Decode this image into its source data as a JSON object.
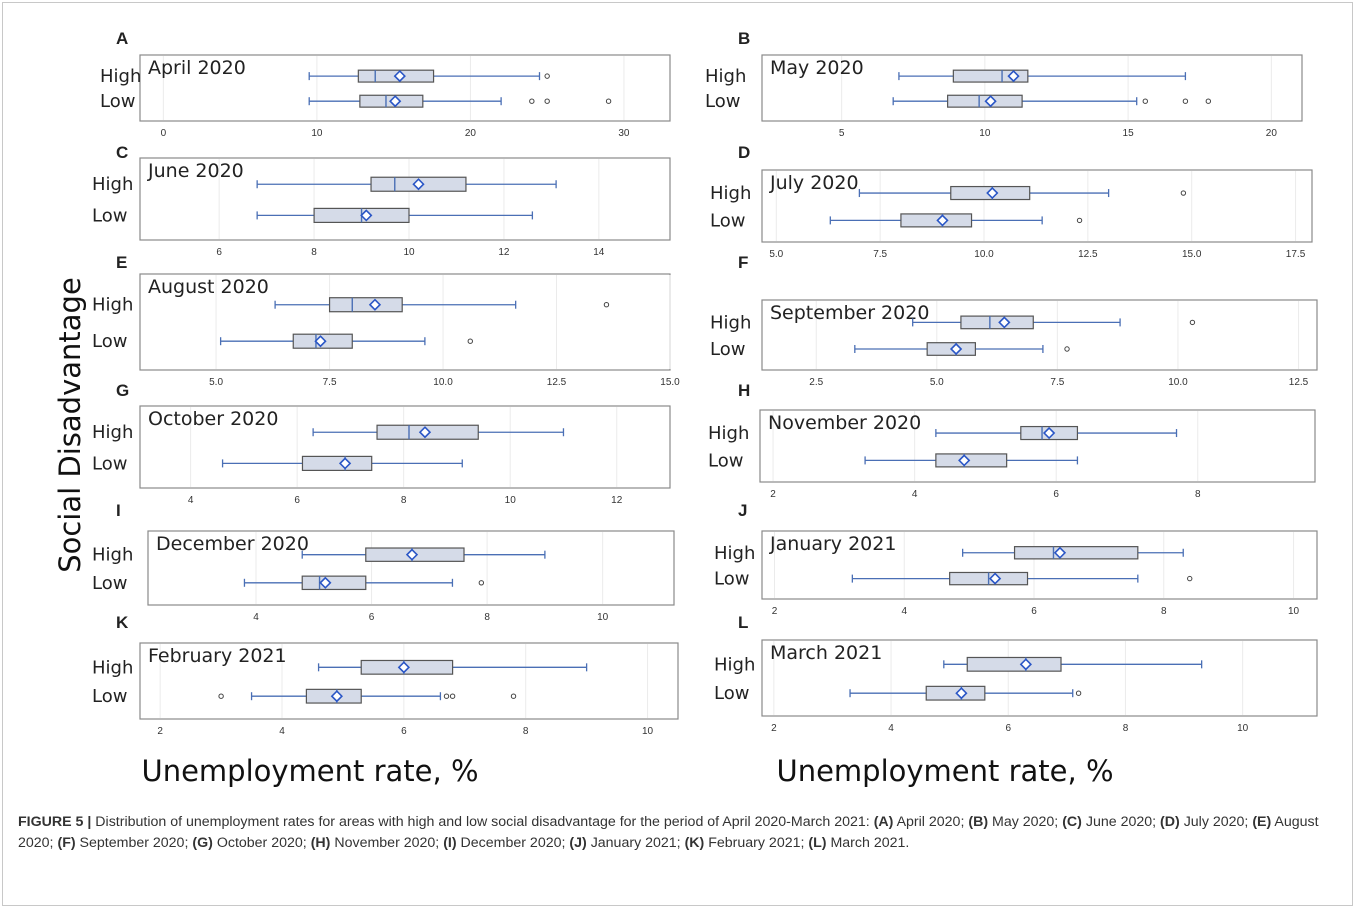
{
  "figure": {
    "y_axis_title": "Social Disadvantage",
    "x_axis_title_left": "Unemployment rate, %",
    "x_axis_title_right": "Unemployment rate, %",
    "categories": [
      "High",
      "Low"
    ]
  },
  "caption": {
    "label": "FIGURE 5 |",
    "text_lead": "Distribution of unemployment rates for areas with high and low social disadvantage for the period of April 2020-March 2021:",
    "items": [
      {
        "letter": "(A)",
        "text": "April 2020;"
      },
      {
        "letter": "(B)",
        "text": "May 2020;"
      },
      {
        "letter": "(C)",
        "text": "June 2020;"
      },
      {
        "letter": "(D)",
        "text": "July 2020;"
      },
      {
        "letter": "(E)",
        "text": "August 2020;"
      },
      {
        "letter": "(F)",
        "text": "September 2020;"
      },
      {
        "letter": "(G)",
        "text": "October 2020;"
      },
      {
        "letter": "(H)",
        "text": "November 2020;"
      },
      {
        "letter": "(I)",
        "text": "December 2020;"
      },
      {
        "letter": "(J)",
        "text": "January 2021;"
      },
      {
        "letter": "(K)",
        "text": "February 2021;"
      },
      {
        "letter": "(L)",
        "text": "March 2021."
      }
    ]
  },
  "colors": {
    "box_fill": "#d5dbe8",
    "box_stroke": "#555555",
    "whisker": "#4a6fb5",
    "mean_marker": "#2a56c6",
    "frame": "#8a8a8a"
  },
  "chart_data": [
    {
      "type": "boxplot",
      "panel": "A",
      "title": "April 2020",
      "xlim": [
        -1,
        33
      ],
      "xticks": [
        0,
        10,
        20,
        30
      ],
      "xtick_labels": [
        "0",
        "10",
        "20",
        "30"
      ],
      "series": [
        {
          "name": "High",
          "whisker_low": 9.5,
          "q1": 12.7,
          "median": 13.8,
          "q3": 17.6,
          "whisker_high": 24.5,
          "mean": 15.4,
          "outliers": [
            25.0
          ]
        },
        {
          "name": "Low",
          "whisker_low": 9.5,
          "q1": 12.8,
          "median": 14.5,
          "q3": 16.9,
          "whisker_high": 22.0,
          "mean": 15.1,
          "outliers": [
            24.0,
            25.0,
            29.0
          ]
        }
      ]
    },
    {
      "type": "boxplot",
      "panel": "B",
      "title": "May 2020",
      "xlim": [
        2.5,
        21
      ],
      "xticks": [
        5,
        10,
        15,
        20
      ],
      "xtick_labels": [
        "5",
        "10",
        "15",
        "20"
      ],
      "series": [
        {
          "name": "High",
          "whisker_low": 7.0,
          "q1": 8.9,
          "median": 10.6,
          "q3": 11.5,
          "whisker_high": 17.0,
          "mean": 11.0,
          "outliers": []
        },
        {
          "name": "Low",
          "whisker_low": 6.8,
          "q1": 8.7,
          "median": 9.8,
          "q3": 11.3,
          "whisker_high": 15.3,
          "mean": 10.2,
          "outliers": [
            15.6,
            17.0,
            17.8
          ]
        }
      ]
    },
    {
      "type": "boxplot",
      "panel": "C",
      "title": "June 2020",
      "xlim": [
        4.5,
        15.5
      ],
      "xticks": [
        6,
        8,
        10,
        12,
        14
      ],
      "xtick_labels": [
        "6",
        "8",
        "10",
        "12",
        "14"
      ],
      "series": [
        {
          "name": "High",
          "whisker_low": 6.8,
          "q1": 9.2,
          "median": 9.7,
          "q3": 11.2,
          "whisker_high": 13.1,
          "mean": 10.2,
          "outliers": []
        },
        {
          "name": "Low",
          "whisker_low": 6.8,
          "q1": 8.0,
          "median": 9.0,
          "q3": 10.0,
          "whisker_high": 12.6,
          "mean": 9.1,
          "outliers": []
        }
      ]
    },
    {
      "type": "boxplot",
      "panel": "D",
      "title": "July 2020",
      "xlim": [
        4.8,
        17.8
      ],
      "xticks": [
        5,
        7.5,
        10,
        12.5,
        15,
        17.5
      ],
      "xtick_labels": [
        "5.0",
        "7.5",
        "10.0",
        "12.5",
        "15.0",
        "17.5"
      ],
      "series": [
        {
          "name": "High",
          "whisker_low": 7.0,
          "q1": 9.2,
          "median": 10.2,
          "q3": 11.1,
          "whisker_high": 13.0,
          "mean": 10.2,
          "outliers": [
            14.8
          ]
        },
        {
          "name": "Low",
          "whisker_low": 6.3,
          "q1": 8.0,
          "median": 9.0,
          "q3": 9.7,
          "whisker_high": 11.4,
          "mean": 9.0,
          "outliers": [
            12.3
          ]
        }
      ]
    },
    {
      "type": "boxplot",
      "panel": "E",
      "title": "August 2020",
      "xlim": [
        3.5,
        15
      ],
      "xticks": [
        5,
        7.5,
        10,
        12.5,
        15
      ],
      "xtick_labels": [
        "5.0",
        "7.5",
        "10.0",
        "12.5",
        "15.0"
      ],
      "series": [
        {
          "name": "High",
          "whisker_low": 6.3,
          "q1": 7.5,
          "median": 8.0,
          "q3": 9.1,
          "whisker_high": 11.6,
          "mean": 8.5,
          "outliers": [
            13.6
          ]
        },
        {
          "name": "Low",
          "whisker_low": 5.1,
          "q1": 6.7,
          "median": 7.2,
          "q3": 8.0,
          "whisker_high": 9.6,
          "mean": 7.3,
          "outliers": [
            10.6
          ]
        }
      ]
    },
    {
      "type": "boxplot",
      "panel": "F",
      "title": "September 2020",
      "xlim": [
        1.5,
        12.8
      ],
      "xticks": [
        2.5,
        5,
        7.5,
        10,
        12.5
      ],
      "xtick_labels": [
        "2.5",
        "5.0",
        "7.5",
        "10.0",
        "12.5"
      ],
      "series": [
        {
          "name": "High",
          "whisker_low": 4.5,
          "q1": 5.5,
          "median": 6.1,
          "q3": 7.0,
          "whisker_high": 8.8,
          "mean": 6.4,
          "outliers": [
            10.3
          ]
        },
        {
          "name": "Low",
          "whisker_low": 3.3,
          "q1": 4.8,
          "median": 5.4,
          "q3": 5.8,
          "whisker_high": 7.2,
          "mean": 5.4,
          "outliers": [
            7.7
          ]
        }
      ]
    },
    {
      "type": "boxplot",
      "panel": "G",
      "title": "October 2020",
      "xlim": [
        3.2,
        13
      ],
      "xticks": [
        4,
        6,
        8,
        10,
        12
      ],
      "xtick_labels": [
        "4",
        "6",
        "8",
        "10",
        "12"
      ],
      "series": [
        {
          "name": "High",
          "whisker_low": 6.3,
          "q1": 7.5,
          "median": 8.1,
          "q3": 9.4,
          "whisker_high": 11.0,
          "mean": 8.4,
          "outliers": []
        },
        {
          "name": "Low",
          "whisker_low": 4.6,
          "q1": 6.1,
          "median": 6.9,
          "q3": 7.4,
          "whisker_high": 9.1,
          "mean": 6.9,
          "outliers": []
        }
      ]
    },
    {
      "type": "boxplot",
      "panel": "H",
      "title": "November 2020",
      "xlim": [
        1.9,
        9.6
      ],
      "xticks": [
        2,
        4,
        6,
        8
      ],
      "xtick_labels": [
        "2",
        "4",
        "6",
        "8"
      ],
      "series": [
        {
          "name": "High",
          "whisker_low": 4.3,
          "q1": 5.5,
          "median": 5.8,
          "q3": 6.3,
          "whisker_high": 7.7,
          "mean": 5.9,
          "outliers": []
        },
        {
          "name": "Low",
          "whisker_low": 3.3,
          "q1": 4.3,
          "median": 4.7,
          "q3": 5.3,
          "whisker_high": 6.3,
          "mean": 4.7,
          "outliers": []
        }
      ]
    },
    {
      "type": "boxplot",
      "panel": "I",
      "title": "December 2020",
      "xlim": [
        2.2,
        11.2
      ],
      "xticks": [
        4,
        6,
        8,
        10
      ],
      "xtick_labels": [
        "4",
        "6",
        "8",
        "10"
      ],
      "series": [
        {
          "name": "High",
          "whisker_low": 4.8,
          "q1": 5.9,
          "median": 6.7,
          "q3": 7.6,
          "whisker_high": 9.0,
          "mean": 6.7,
          "outliers": []
        },
        {
          "name": "Low",
          "whisker_low": 3.8,
          "q1": 4.8,
          "median": 5.1,
          "q3": 5.9,
          "whisker_high": 7.4,
          "mean": 5.2,
          "outliers": [
            7.9
          ]
        }
      ]
    },
    {
      "type": "boxplot",
      "panel": "J",
      "title": "January 2021",
      "xlim": [
        1.9,
        10.3
      ],
      "xticks": [
        2,
        4,
        6,
        8,
        10
      ],
      "xtick_labels": [
        "2",
        "4",
        "6",
        "8",
        "10"
      ],
      "series": [
        {
          "name": "High",
          "whisker_low": 4.9,
          "q1": 5.7,
          "median": 6.3,
          "q3": 7.6,
          "whisker_high": 8.3,
          "mean": 6.4,
          "outliers": []
        },
        {
          "name": "Low",
          "whisker_low": 3.2,
          "q1": 4.7,
          "median": 5.3,
          "q3": 5.9,
          "whisker_high": 7.6,
          "mean": 5.4,
          "outliers": [
            8.4
          ]
        }
      ]
    },
    {
      "type": "boxplot",
      "panel": "K",
      "title": "February 2021",
      "xlim": [
        1.8,
        10.5
      ],
      "xticks": [
        2,
        4,
        6,
        8,
        10
      ],
      "xtick_labels": [
        "2",
        "4",
        "6",
        "8",
        "10"
      ],
      "series": [
        {
          "name": "High",
          "whisker_low": 4.6,
          "q1": 5.3,
          "median": 6.0,
          "q3": 6.8,
          "whisker_high": 9.0,
          "mean": 6.0,
          "outliers": []
        },
        {
          "name": "Low",
          "whisker_low": 3.5,
          "q1": 4.4,
          "median": 4.9,
          "q3": 5.3,
          "whisker_high": 6.6,
          "mean": 4.9,
          "outliers": [
            3.0,
            6.7,
            6.8,
            7.8
          ]
        }
      ]
    },
    {
      "type": "boxplot",
      "panel": "L",
      "title": "March 2021",
      "xlim": [
        1.9,
        11.2
      ],
      "xticks": [
        2,
        4,
        6,
        8,
        10
      ],
      "xtick_labels": [
        "2",
        "4",
        "6",
        "8",
        "10"
      ],
      "series": [
        {
          "name": "High",
          "whisker_low": 4.9,
          "q1": 5.3,
          "median": 6.3,
          "q3": 6.9,
          "whisker_high": 9.3,
          "mean": 6.3,
          "outliers": []
        },
        {
          "name": "Low",
          "whisker_low": 3.3,
          "q1": 4.6,
          "median": 5.2,
          "q3": 5.6,
          "whisker_high": 7.1,
          "mean": 5.2,
          "outliers": [
            7.2
          ]
        }
      ]
    }
  ]
}
